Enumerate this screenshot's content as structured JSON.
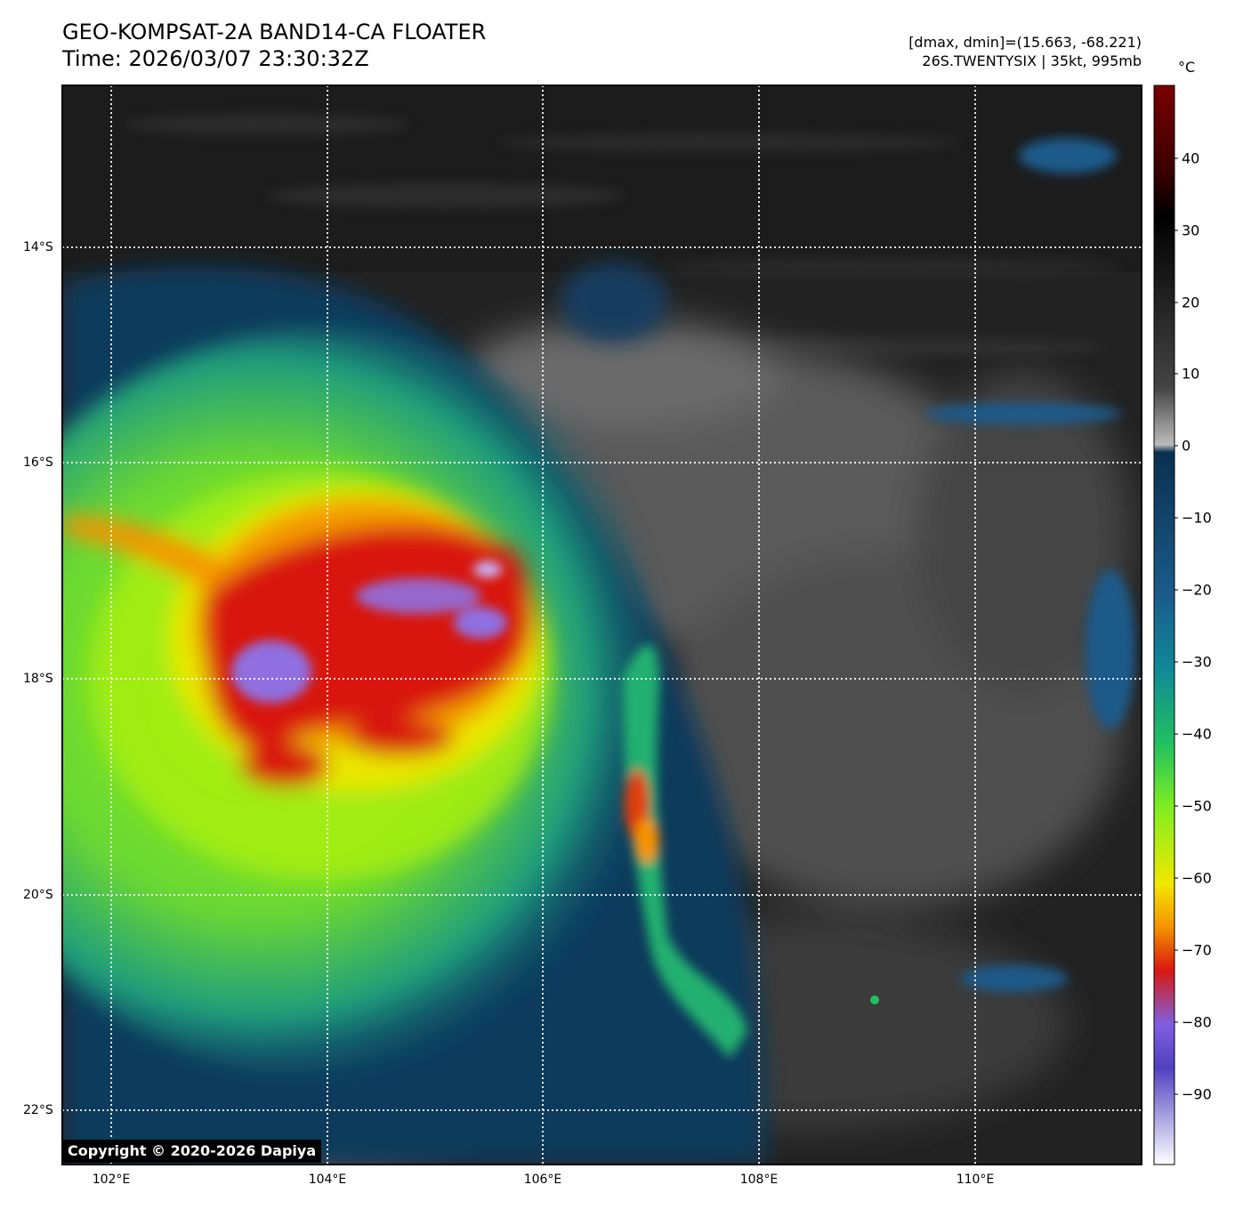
{
  "header": {
    "title_line1": "GEO-KOMPSAT-2A BAND14-CA FLOATER",
    "title_line2": "Time: 2026/03/07 23:30:32Z",
    "info_line1": "[dmax, dmin]=(15.663, -68.221)",
    "info_line2": "26S.TWENTYSIX | 35kt, 995mb"
  },
  "colorbar": {
    "unit": "°C",
    "ticks": [
      "40",
      "30",
      "20",
      "10",
      "0",
      "−10",
      "−20",
      "−30",
      "−40",
      "−50",
      "−60",
      "−70",
      "−80",
      "−90"
    ],
    "range": [
      -100,
      50
    ],
    "colors": {
      "top": "#7a0000",
      "warm_black": "#000000",
      "gray": "#9a9a9a",
      "dark_blue": "#0a3050",
      "blue": "#1a5a8a",
      "teal": "#108898",
      "green": "#22c060",
      "lime": "#80ee20",
      "yellow": "#f2e800",
      "orange": "#f59300",
      "red": "#d81810",
      "purple": "#8060e0",
      "white": "#ffffff"
    }
  },
  "map": {
    "lat_labels": [
      "14°S",
      "16°S",
      "18°S",
      "20°S",
      "22°S"
    ],
    "lon_labels": [
      "102°E",
      "104°E",
      "106°E",
      "108°E",
      "110°E"
    ],
    "lat_values": [
      -14,
      -16,
      -18,
      -20,
      -22
    ],
    "lon_values": [
      102,
      104,
      106,
      108,
      110
    ]
  },
  "copyright": "Copyright © 2020-2026 Dapiya"
}
